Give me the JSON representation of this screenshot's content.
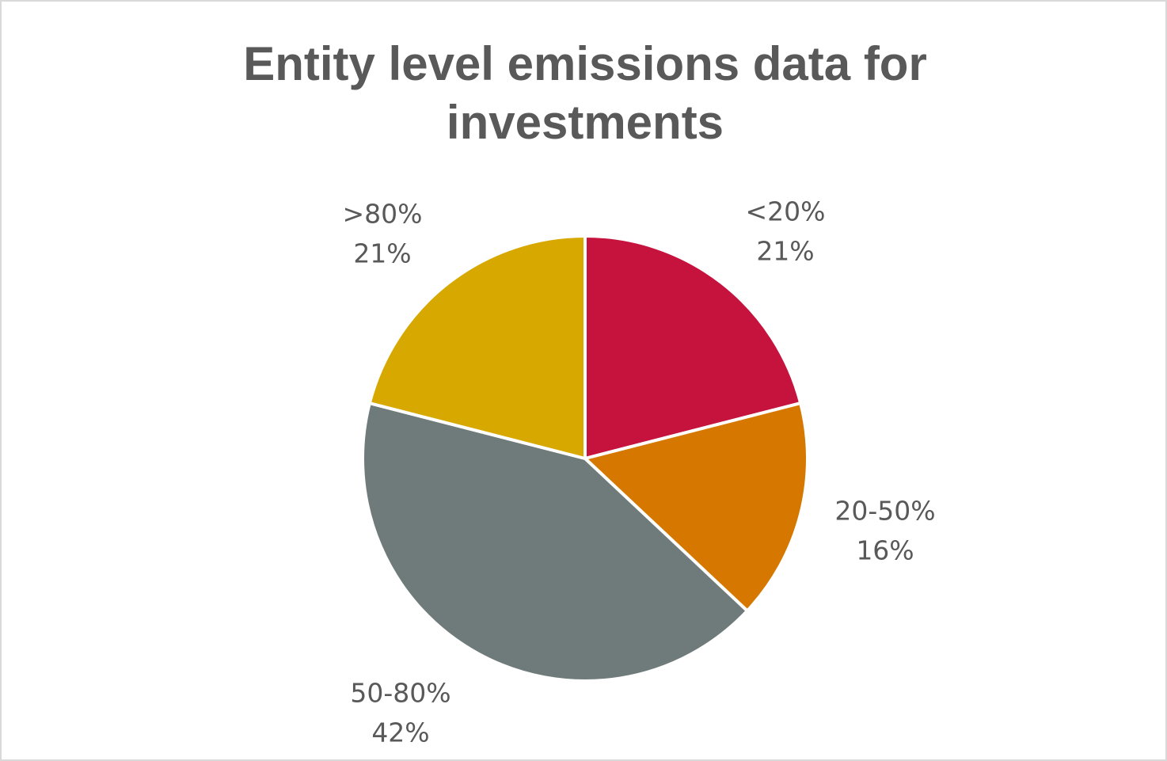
{
  "chart_data": {
    "type": "pie",
    "title": "Entity level emissions data for investments",
    "title_lines": [
      "Entity level emissions data for",
      "investments"
    ],
    "categories": [
      "<20%",
      "20-50%",
      "50-80%",
      ">80%"
    ],
    "values": [
      21,
      16,
      42,
      21
    ],
    "value_labels": [
      "21%",
      "16%",
      "42%",
      "21%"
    ],
    "colors": [
      "#c5133e",
      "#d67800",
      "#6f7b7a",
      "#d6a800"
    ],
    "start_angle_deg": 0,
    "direction": "clockwise",
    "legend": "none"
  }
}
